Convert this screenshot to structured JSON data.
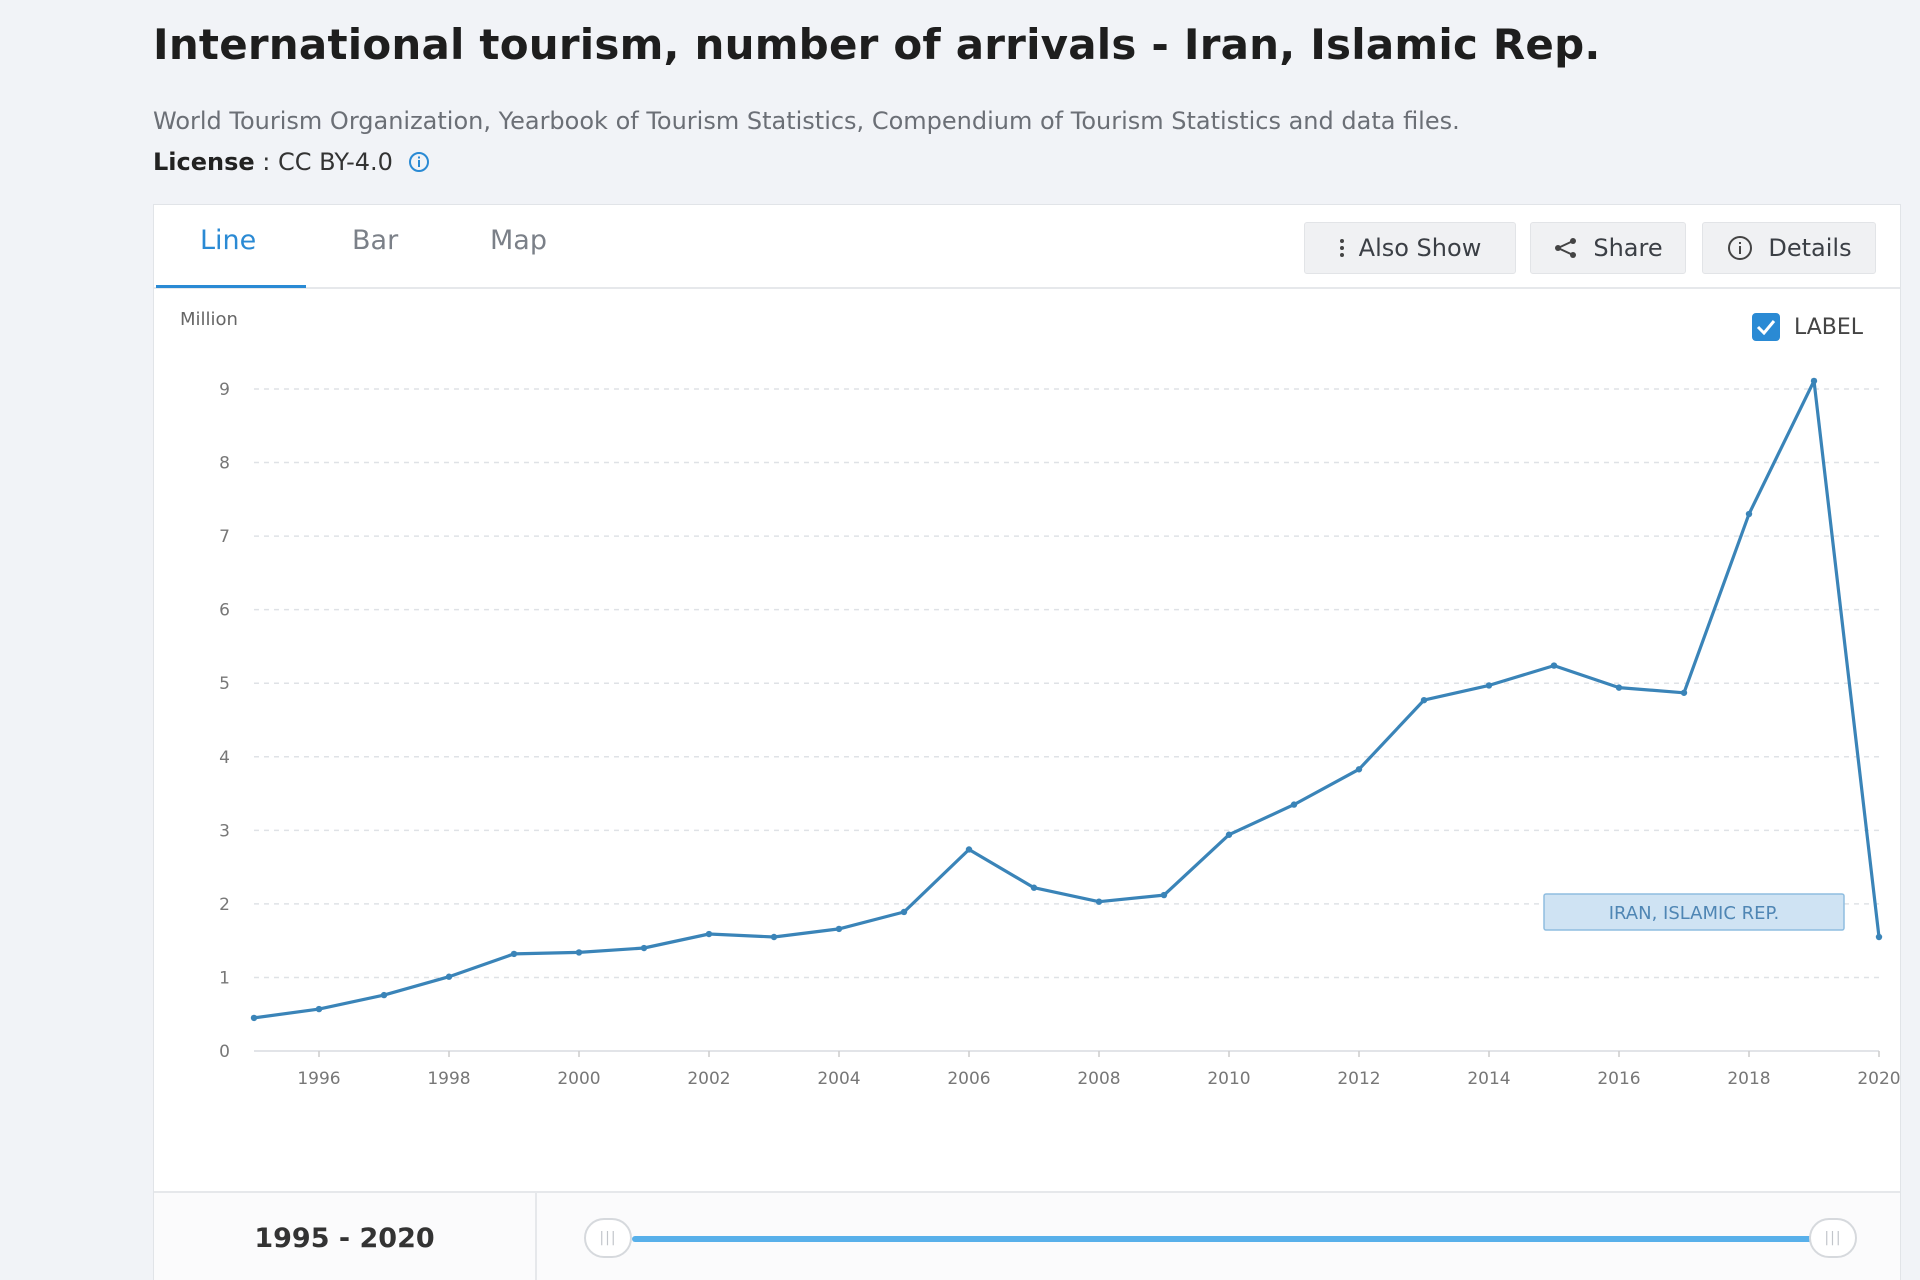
{
  "header": {
    "title": "International tourism, number of arrivals - Iran, Islamic Rep.",
    "source": "World Tourism Organization, Yearbook of Tourism Statistics, Compendium of Tourism Statistics and data files.",
    "license_label": "License",
    "license_sep": " : ",
    "license_value": "CC BY-4.0"
  },
  "tabs": [
    {
      "label": "Line",
      "active": true
    },
    {
      "label": "Bar",
      "active": false
    },
    {
      "label": "Map",
      "active": false
    }
  ],
  "toolbar": {
    "also_show": "Also Show",
    "share": "Share",
    "details": "Details"
  },
  "label_toggle": {
    "text": "LABEL",
    "checked": true
  },
  "range": {
    "label": "1995 - 2020"
  },
  "colors": {
    "accent": "#2a8ad4",
    "line": "#3a84b8",
    "series_label_bg": "#cfe3f3",
    "series_label_border": "#8fbde0"
  },
  "chart_data": {
    "type": "line",
    "unit_label": "Million",
    "x": [
      1995,
      1996,
      1997,
      1998,
      1999,
      2000,
      2001,
      2002,
      2003,
      2004,
      2005,
      2006,
      2007,
      2008,
      2009,
      2010,
      2011,
      2012,
      2013,
      2014,
      2015,
      2016,
      2017,
      2018,
      2019,
      2020
    ],
    "series": [
      {
        "name": "IRAN, ISLAMIC REP.",
        "values": [
          0.45,
          0.57,
          0.76,
          1.01,
          1.32,
          1.34,
          1.4,
          1.59,
          1.55,
          1.66,
          1.89,
          2.74,
          2.22,
          2.03,
          2.12,
          2.94,
          3.35,
          3.83,
          4.77,
          4.97,
          5.24,
          4.94,
          4.87,
          7.3,
          9.11,
          1.55
        ]
      }
    ],
    "xticks": [
      1996,
      1998,
      2000,
      2002,
      2004,
      2006,
      2008,
      2010,
      2012,
      2014,
      2016,
      2018,
      2020
    ],
    "yticks": [
      0,
      1,
      2,
      3,
      4,
      5,
      6,
      7,
      8,
      9
    ],
    "ylim": [
      0,
      9
    ],
    "xlim": [
      1995,
      2020
    ],
    "grid": true
  }
}
